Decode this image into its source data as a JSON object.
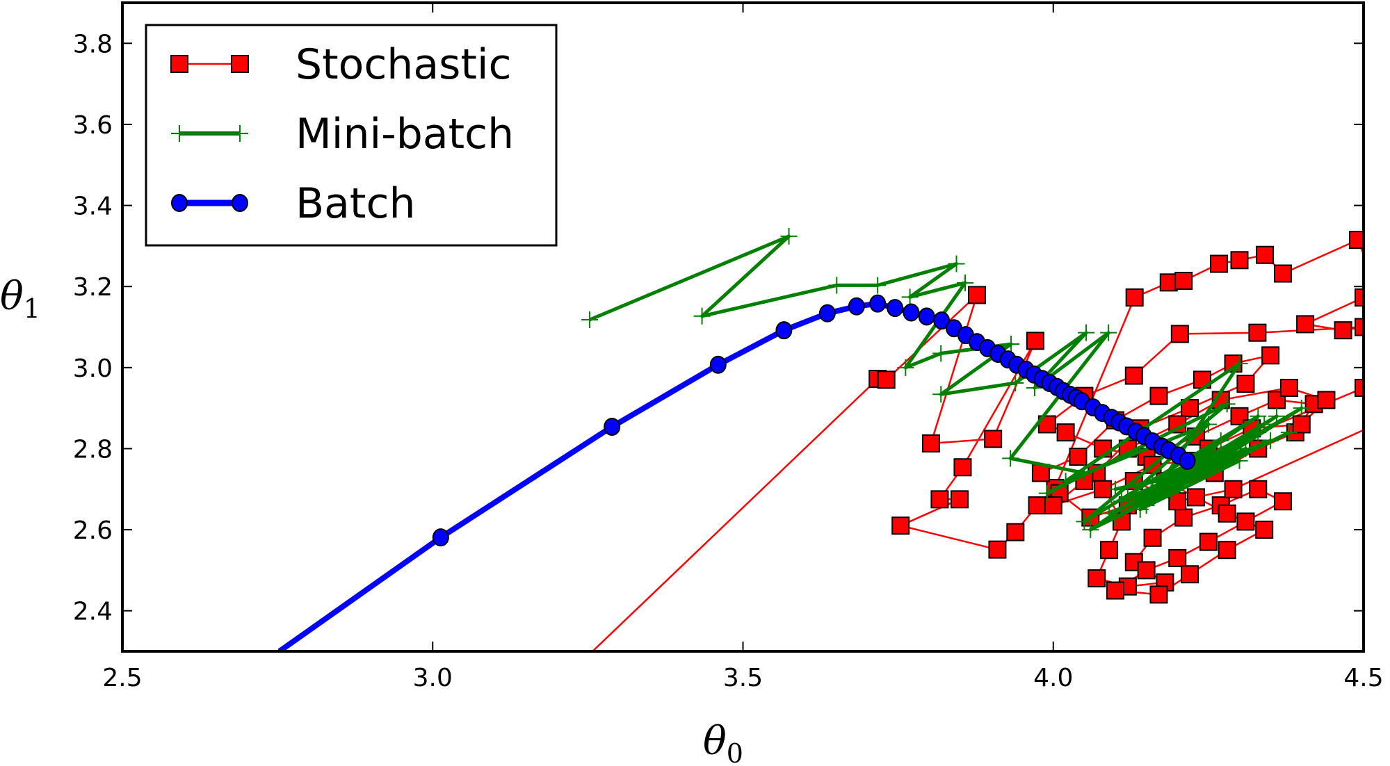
{
  "chart_data": {
    "type": "line",
    "title": "",
    "xlabel": "θ",
    "xlabel_sub": "0",
    "ylabel": "θ",
    "ylabel_sub": "1",
    "xlim": [
      2.5,
      4.5
    ],
    "ylim": [
      2.3,
      3.9
    ],
    "xticks": [
      2.5,
      3.0,
      3.5,
      4.0,
      4.5
    ],
    "xtick_labels": [
      "2.5",
      "3.0",
      "3.5",
      "4.0",
      "4.5"
    ],
    "yticks": [
      2.4,
      2.6,
      2.8,
      3.0,
      3.2,
      3.4,
      3.6,
      3.8
    ],
    "ytick_labels": [
      "2.4",
      "2.6",
      "2.8",
      "3.0",
      "3.2",
      "3.4",
      "3.6",
      "3.8"
    ],
    "grid": false,
    "legend_placement": "top-left",
    "series": [
      {
        "name": "Stochastic",
        "color": "#ff0000",
        "marker": "square",
        "points": [
          [
            2.95,
            1.85
          ],
          [
            3.717,
            2.972
          ],
          [
            3.731,
            2.97
          ],
          [
            3.877,
            3.179
          ],
          [
            3.803,
            2.813
          ],
          [
            3.903,
            2.824
          ],
          [
            3.971,
            3.066
          ],
          [
            3.854,
            2.754
          ],
          [
            3.817,
            2.675
          ],
          [
            3.849,
            2.675
          ],
          [
            3.754,
            2.61
          ],
          [
            3.91,
            2.551
          ],
          [
            3.939,
            2.594
          ],
          [
            3.974,
            2.66
          ],
          [
            4.003,
            2.703
          ],
          [
            4.131,
            3.173
          ],
          [
            4.186,
            3.21
          ],
          [
            4.21,
            3.214
          ],
          [
            4.267,
            3.256
          ],
          [
            4.3,
            3.265
          ],
          [
            4.341,
            3.278
          ],
          [
            4.37,
            3.232
          ],
          [
            4.491,
            3.315
          ],
          [
            4.52,
            3.2
          ],
          [
            4.5,
            3.173
          ],
          [
            4.406,
            3.107
          ],
          [
            4.467,
            3.092
          ],
          [
            4.5,
            3.1
          ],
          [
            4.329,
            3.086
          ],
          [
            4.204,
            3.083
          ],
          [
            4.13,
            2.98
          ],
          [
            4.05,
            2.93
          ],
          [
            3.99,
            2.86
          ],
          [
            4.02,
            2.84
          ],
          [
            4.08,
            2.8
          ],
          [
            4.15,
            2.78
          ],
          [
            4.23,
            2.83
          ],
          [
            4.3,
            2.88
          ],
          [
            4.36,
            2.92
          ],
          [
            4.42,
            2.91
          ],
          [
            4.39,
            2.84
          ],
          [
            4.33,
            2.8
          ],
          [
            4.26,
            2.74
          ],
          [
            4.19,
            2.7
          ],
          [
            4.12,
            2.66
          ],
          [
            4.06,
            2.63
          ],
          [
            4.01,
            2.69
          ],
          [
            3.98,
            2.74
          ],
          [
            4.04,
            2.78
          ],
          [
            4.1,
            2.87
          ],
          [
            4.17,
            2.93
          ],
          [
            4.24,
            2.97
          ],
          [
            4.29,
            3.01
          ],
          [
            4.35,
            3.03
          ],
          [
            4.31,
            2.96
          ],
          [
            4.22,
            2.9
          ],
          [
            4.14,
            2.85
          ],
          [
            4.07,
            2.74
          ],
          [
            4.11,
            2.62
          ],
          [
            4.09,
            2.55
          ],
          [
            4.07,
            2.48
          ],
          [
            4.12,
            2.46
          ],
          [
            4.18,
            2.47
          ],
          [
            4.13,
            2.52
          ],
          [
            4.16,
            2.58
          ],
          [
            4.21,
            2.63
          ],
          [
            4.27,
            2.66
          ],
          [
            4.33,
            2.7
          ],
          [
            4.37,
            2.67
          ],
          [
            4.31,
            2.62
          ],
          [
            4.25,
            2.57
          ],
          [
            4.2,
            2.53
          ],
          [
            4.15,
            2.5
          ],
          [
            4.1,
            2.45
          ],
          [
            4.17,
            2.44
          ],
          [
            4.22,
            2.49
          ],
          [
            4.28,
            2.55
          ],
          [
            4.34,
            2.6
          ],
          [
            4.28,
            2.64
          ],
          [
            4.23,
            2.68
          ],
          [
            4.18,
            2.72
          ],
          [
            4.25,
            2.8
          ],
          [
            4.32,
            2.85
          ],
          [
            4.4,
            2.86
          ],
          [
            4.44,
            2.92
          ],
          [
            4.38,
            2.95
          ],
          [
            4.27,
            2.92
          ],
          [
            4.2,
            2.86
          ],
          [
            4.12,
            2.8
          ],
          [
            4.05,
            2.72
          ],
          [
            4.0,
            2.66
          ],
          [
            4.08,
            2.7
          ],
          [
            4.16,
            2.76
          ],
          [
            4.22,
            2.77
          ],
          [
            4.5,
            2.95
          ],
          [
            4.52,
            2.86
          ],
          [
            4.29,
            2.7
          ],
          [
            4.2,
            2.67
          ],
          [
            4.13,
            2.72
          ]
        ]
      },
      {
        "name": "Mini-batch",
        "color": "#008000",
        "marker": "plus",
        "points": [
          [
            3.253,
            3.118
          ],
          [
            3.574,
            3.324
          ],
          [
            3.434,
            3.127
          ],
          [
            3.651,
            3.203
          ],
          [
            3.717,
            3.203
          ],
          [
            3.844,
            3.256
          ],
          [
            3.769,
            3.174
          ],
          [
            3.858,
            3.209
          ],
          [
            3.762,
            3.0
          ],
          [
            3.819,
            3.035
          ],
          [
            3.932,
            3.058
          ],
          [
            3.819,
            2.934
          ],
          [
            3.939,
            2.962
          ],
          [
            4.053,
            3.086
          ],
          [
            3.97,
            2.95
          ],
          [
            4.089,
            3.086
          ],
          [
            3.931,
            2.776
          ],
          [
            4.05,
            2.74
          ],
          [
            3.99,
            2.69
          ],
          [
            4.28,
            2.91
          ],
          [
            4.05,
            2.62
          ],
          [
            4.33,
            2.88
          ],
          [
            4.06,
            2.6
          ],
          [
            4.38,
            2.84
          ],
          [
            4.1,
            2.63
          ],
          [
            4.4,
            2.9
          ],
          [
            4.15,
            2.66
          ],
          [
            4.3,
            3.01
          ],
          [
            4.02,
            2.72
          ],
          [
            4.25,
            2.86
          ],
          [
            4.12,
            2.68
          ],
          [
            4.35,
            2.82
          ],
          [
            4.09,
            2.64
          ],
          [
            4.31,
            2.8
          ],
          [
            4.18,
            2.7
          ],
          [
            4.36,
            2.88
          ],
          [
            4.13,
            2.67
          ],
          [
            4.28,
            2.79
          ],
          [
            4.16,
            2.72
          ],
          [
            4.33,
            2.84
          ],
          [
            4.2,
            2.73
          ],
          [
            4.1,
            2.7
          ],
          [
            4.3,
            2.77
          ],
          [
            4.14,
            2.65
          ],
          [
            4.27,
            2.82
          ],
          [
            4.19,
            2.69
          ],
          [
            4.34,
            2.86
          ],
          [
            4.21,
            2.74
          ],
          [
            4.11,
            2.67
          ],
          [
            4.25,
            2.76
          ],
          [
            4.17,
            2.71
          ],
          [
            4.29,
            2.78
          ],
          [
            4.2,
            2.72
          ]
        ]
      },
      {
        "name": "Batch",
        "color": "#0000ff",
        "marker": "circle",
        "points": [
          [
            2.568,
            2.1
          ],
          [
            3.013,
            2.581
          ],
          [
            3.289,
            2.854
          ],
          [
            3.46,
            3.007
          ],
          [
            3.566,
            3.092
          ],
          [
            3.636,
            3.134
          ],
          [
            3.683,
            3.151
          ],
          [
            3.717,
            3.158
          ],
          [
            3.745,
            3.147
          ],
          [
            3.771,
            3.136
          ],
          [
            3.796,
            3.126
          ],
          [
            3.82,
            3.116
          ],
          [
            3.84,
            3.097
          ],
          [
            3.859,
            3.08
          ],
          [
            3.877,
            3.063
          ],
          [
            3.894,
            3.048
          ],
          [
            3.911,
            3.034
          ],
          [
            3.927,
            3.02
          ],
          [
            3.941,
            3.007
          ],
          [
            3.956,
            2.995
          ],
          [
            3.969,
            2.983
          ],
          [
            3.982,
            2.972
          ],
          [
            3.994,
            2.962
          ],
          [
            4.006,
            2.952
          ],
          [
            4.016,
            2.942
          ],
          [
            4.027,
            2.933
          ],
          [
            4.037,
            2.925
          ],
          [
            4.046,
            2.917
          ],
          [
            4.064,
            2.902
          ],
          [
            4.079,
            2.888
          ],
          [
            4.094,
            2.876
          ],
          [
            4.106,
            2.865
          ],
          [
            4.118,
            2.855
          ],
          [
            4.133,
            2.842
          ],
          [
            4.146,
            2.831
          ],
          [
            4.16,
            2.818
          ],
          [
            4.175,
            2.805
          ],
          [
            4.186,
            2.796
          ],
          [
            4.202,
            2.783
          ],
          [
            4.216,
            2.77
          ]
        ]
      }
    ]
  }
}
